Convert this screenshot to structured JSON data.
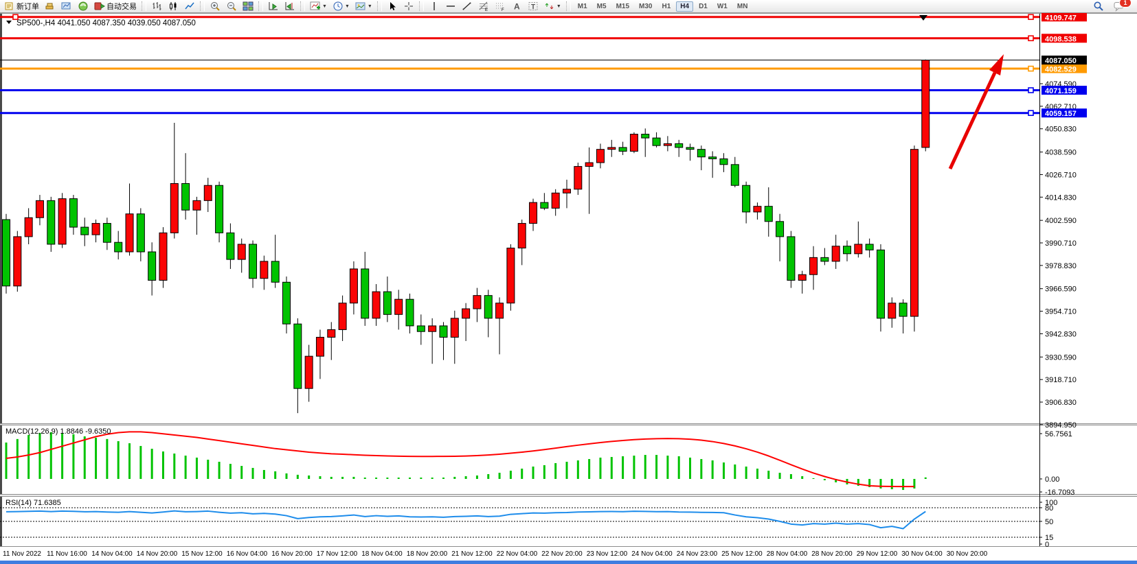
{
  "toolbar": {
    "new_order_label": "新订单",
    "autotrade_label": "自动交易",
    "buttons": [
      {
        "name": "new-order-button",
        "icon": "order",
        "label_key": "new_order_label"
      },
      {
        "name": "market-depth-button",
        "icon": "gold-stack"
      },
      {
        "name": "market-watch-button",
        "icon": "market-watch"
      },
      {
        "name": "signals-button",
        "icon": "signal"
      },
      {
        "name": "autotrading-button",
        "icon": "autotrade",
        "label_key": "autotrade_label"
      },
      {
        "sep": true
      },
      {
        "name": "bar-chart-button",
        "icon": "bar-chart"
      },
      {
        "name": "candlestick-button",
        "icon": "candle-chart"
      },
      {
        "name": "line-chart-button",
        "icon": "line-chart"
      },
      {
        "sep": true
      },
      {
        "name": "zoom-in-button",
        "icon": "zoom-in"
      },
      {
        "name": "zoom-out-button",
        "icon": "zoom-out"
      },
      {
        "name": "tile-windows-button",
        "icon": "tile"
      },
      {
        "sep": true
      },
      {
        "name": "auto-scroll-button",
        "icon": "auto-scroll"
      },
      {
        "name": "chart-shift-button",
        "icon": "chart-shift"
      },
      {
        "sep": true
      },
      {
        "name": "indicators-button",
        "icon": "indicators",
        "caret": true
      },
      {
        "name": "periods-button",
        "icon": "clock",
        "caret": true
      },
      {
        "name": "templates-button",
        "icon": "template",
        "caret": true
      },
      {
        "sep": true
      },
      {
        "name": "cursor-button",
        "icon": "cursor"
      },
      {
        "name": "crosshair-button",
        "icon": "crosshair"
      },
      {
        "sep": true
      },
      {
        "name": "vline-button",
        "icon": "vline"
      },
      {
        "name": "hline-button",
        "icon": "hline"
      },
      {
        "name": "trendline-button",
        "icon": "trendline"
      },
      {
        "name": "fibo-button",
        "icon": "fibo"
      },
      {
        "name": "channel-button",
        "icon": "fibo-f"
      },
      {
        "name": "text-button",
        "icon": "text-a"
      },
      {
        "name": "text-label-button",
        "icon": "text-t"
      },
      {
        "name": "shapes-button",
        "icon": "shapes",
        "caret": true
      },
      {
        "sep": true
      }
    ],
    "timeframes": [
      "M1",
      "M5",
      "M15",
      "M30",
      "H1",
      "H4",
      "D1",
      "W1",
      "MN"
    ],
    "active_timeframe": "H4",
    "chat_badge": "1"
  },
  "chart_data": {
    "type": "candlestick",
    "symbol": "SP500-",
    "timeframe": "H4",
    "title_symbol": "SP500-,H4",
    "title_ohlc": "4041.050 4087.350 4039.050 4087.050",
    "bull_color": "#fa0505",
    "bear_color": "#00c300",
    "wick_color": "#000000",
    "current_price": 4087.05,
    "current_price_badge_bg": "#000000",
    "price_ticks": [
      4074.59,
      4062.71,
      4050.83,
      4038.59,
      4026.71,
      4014.83,
      4002.59,
      3990.71,
      3978.83,
      3966.59,
      3954.71,
      3942.83,
      3930.59,
      3918.71,
      3906.83,
      3894.95
    ],
    "horizontal_lines": [
      {
        "price": 4109.747,
        "color": "#f00000",
        "handles": [
          19,
          1497
        ]
      },
      {
        "price": 4098.538,
        "color": "#f00000",
        "handles": [
          1497
        ]
      },
      {
        "price": 4082.529,
        "color": "#ff9a00",
        "handles": [
          1497
        ]
      },
      {
        "price": 4071.159,
        "color": "#0000ee",
        "handles": [
          1497
        ]
      },
      {
        "price": 4059.157,
        "color": "#0000ee",
        "handles": [
          1497
        ]
      }
    ],
    "candles": [
      [
        4003,
        4006,
        3964,
        3968
      ],
      [
        3968,
        3997,
        3965,
        3994
      ],
      [
        3994,
        4009,
        3990,
        4004
      ],
      [
        4004,
        4016,
        4000,
        4013
      ],
      [
        4013,
        4015,
        3986,
        3990
      ],
      [
        3990,
        4017,
        3988,
        4014
      ],
      [
        4014,
        4016,
        3995,
        3999
      ],
      [
        3999,
        4004,
        3989,
        3995
      ],
      [
        3995,
        4003,
        3991,
        4001
      ],
      [
        4001,
        4004,
        3987,
        3991
      ],
      [
        3991,
        3997,
        3982,
        3986
      ],
      [
        3986,
        4022,
        3984,
        4006
      ],
      [
        4006,
        4009,
        3981,
        3986
      ],
      [
        3986,
        3991,
        3963,
        3971
      ],
      [
        3971,
        3999,
        3967,
        3996
      ],
      [
        3996,
        4054,
        3993,
        4022
      ],
      [
        4022,
        4038,
        4003,
        4008
      ],
      [
        4008,
        4015,
        3995,
        4013
      ],
      [
        4013,
        4025,
        4007,
        4021
      ],
      [
        4021,
        4023,
        3991,
        3996
      ],
      [
        3996,
        4001,
        3977,
        3982
      ],
      [
        3982,
        3993,
        3975,
        3990
      ],
      [
        3990,
        3992,
        3967,
        3972
      ],
      [
        3972,
        3984,
        3966,
        3981
      ],
      [
        3981,
        3995,
        3967,
        3970
      ],
      [
        3970,
        3973,
        3943,
        3948
      ],
      [
        3948,
        3951,
        3901,
        3914
      ],
      [
        3914,
        3937,
        3907,
        3931
      ],
      [
        3931,
        3945,
        3919,
        3941
      ],
      [
        3941,
        3949,
        3929,
        3945
      ],
      [
        3945,
        3963,
        3939,
        3959
      ],
      [
        3959,
        3981,
        3953,
        3977
      ],
      [
        3977,
        3986,
        3947,
        3951
      ],
      [
        3951,
        3969,
        3947,
        3965
      ],
      [
        3965,
        3973,
        3949,
        3953
      ],
      [
        3953,
        3966,
        3945,
        3961
      ],
      [
        3961,
        3964,
        3943,
        3947
      ],
      [
        3947,
        3953,
        3937,
        3944
      ],
      [
        3944,
        3951,
        3927,
        3947
      ],
      [
        3947,
        3949,
        3929,
        3941
      ],
      [
        3941,
        3955,
        3927,
        3951
      ],
      [
        3951,
        3959,
        3939,
        3956
      ],
      [
        3956,
        3967,
        3949,
        3963
      ],
      [
        3963,
        3966,
        3941,
        3951
      ],
      [
        3951,
        3962,
        3932,
        3959
      ],
      [
        3959,
        3990,
        3955,
        3988
      ],
      [
        3988,
        4003,
        3979,
        4001
      ],
      [
        4001,
        4014,
        3997,
        4012
      ],
      [
        4012,
        4017,
        4008,
        4009
      ],
      [
        4009,
        4019,
        4005,
        4017
      ],
      [
        4017,
        4024,
        4009,
        4019
      ],
      [
        4019,
        4033,
        4016,
        4031
      ],
      [
        4031,
        4041,
        4006,
        4033
      ],
      [
        4033,
        4043,
        4030,
        4040
      ],
      [
        4040,
        4045,
        4036,
        4041
      ],
      [
        4041,
        4044,
        4037,
        4039
      ],
      [
        4039,
        4049,
        4038,
        4048
      ],
      [
        4048,
        4051,
        4036,
        4046
      ],
      [
        4046,
        4049,
        4041,
        4042
      ],
      [
        4042,
        4047,
        4039,
        4043
      ],
      [
        4043,
        4045,
        4036,
        4041
      ],
      [
        4041,
        4043,
        4034,
        4040
      ],
      [
        4040,
        4042,
        4029,
        4036
      ],
      [
        4036,
        4039,
        4025,
        4035
      ],
      [
        4035,
        4038,
        4028,
        4032
      ],
      [
        4032,
        4036,
        4020,
        4021
      ],
      [
        4021,
        4023,
        4001,
        4007
      ],
      [
        4007,
        4012,
        4003,
        4010
      ],
      [
        4010,
        4020,
        3994,
        4002
      ],
      [
        4002,
        4006,
        3981,
        3994
      ],
      [
        3994,
        3997,
        3967,
        3971
      ],
      [
        3971,
        3976,
        3964,
        3974
      ],
      [
        3974,
        3989,
        3966,
        3983
      ],
      [
        3983,
        3988,
        3979,
        3981
      ],
      [
        3981,
        3995,
        3977,
        3989
      ],
      [
        3989,
        3992,
        3981,
        3985
      ],
      [
        3985,
        4002,
        3983,
        3990
      ],
      [
        3990,
        3993,
        3983,
        3987
      ],
      [
        3987,
        3990,
        3944,
        3951
      ],
      [
        3951,
        3962,
        3946,
        3959
      ],
      [
        3959,
        3961,
        3943,
        3952
      ],
      [
        3952,
        4042,
        3944,
        4040
      ],
      [
        4041,
        4087.35,
        4039,
        4087.05
      ]
    ],
    "macd": {
      "label": "MACD(12,26,9) 1.8846 -9.6350",
      "hist_color": "#00c300",
      "signal_color": "#ff0000",
      "scale_labels": [
        {
          "v": 56.7561,
          "text": "56.7561"
        },
        {
          "v": 0,
          "text": "0.00"
        },
        {
          "v": -16.7093,
          "text": "-16.7093"
        }
      ],
      "hist": [
        45.6,
        50,
        55,
        57.6,
        58.5,
        57.6,
        55.9,
        53.3,
        51.6,
        50,
        47.3,
        44.7,
        41.3,
        37.8,
        34.4,
        31.8,
        29.2,
        26.7,
        24.1,
        21.5,
        18.9,
        16.3,
        13.8,
        11.2,
        9.5,
        6.9,
        5.2,
        4.3,
        3.4,
        2.6,
        2.6,
        2.6,
        1.7,
        1.7,
        1.7,
        1.7,
        1.7,
        1.7,
        1.7,
        1.7,
        2.6,
        3.4,
        4.3,
        6.0,
        7.7,
        10.3,
        12.9,
        15.5,
        17.2,
        19.8,
        21.5,
        23.2,
        24.9,
        26.7,
        27.5,
        28.4,
        29.2,
        30.1,
        30.1,
        29.2,
        28.4,
        26.7,
        24.9,
        23.2,
        20.6,
        18.1,
        15.5,
        12.9,
        10.3,
        7.7,
        6.0,
        3.4,
        0.9,
        -1.7,
        -4.3,
        -6.9,
        -8.6,
        -10.3,
        -12.0,
        -12.9,
        -13.8,
        -12.0,
        1.9
      ],
      "signal": [
        25.8,
        27.5,
        30,
        33,
        37,
        41,
        45,
        49,
        53,
        56,
        58,
        59,
        59,
        58,
        56.5,
        55,
        53.5,
        52,
        50,
        48,
        46,
        44,
        42,
        40,
        38,
        36.5,
        35,
        33.5,
        32.5,
        31.5,
        31,
        30.3,
        29.7,
        29.2,
        28.8,
        28.5,
        28.3,
        28.2,
        28.2,
        28.3,
        28.4,
        28.7,
        29.2,
        30,
        31,
        32.2,
        33.5,
        35,
        36.8,
        38.6,
        40.5,
        42.3,
        44,
        45.6,
        47,
        48.2,
        49.2,
        50,
        50.4,
        50.6,
        50.4,
        49.8,
        48.6,
        46.8,
        44.4,
        41.4,
        37.8,
        33.6,
        28.8,
        23.4,
        17.8,
        12.4,
        7.4,
        3.0,
        -0.8,
        -4.0,
        -6.6,
        -8.6,
        -9.2,
        -9.5,
        -9.6,
        -9.6,
        null
      ]
    },
    "rsi": {
      "label": "RSI(14) 71.6385",
      "line_color": "#1d8ceb",
      "scale_labels": [
        {
          "v": 100,
          "text": "100",
          "dashed": false
        },
        {
          "v": 80,
          "text": "80",
          "dashed": true
        },
        {
          "v": 50,
          "text": "50",
          "dashed": true
        },
        {
          "v": 15,
          "text": "15",
          "dashed": true
        },
        {
          "v": 0,
          "text": "0",
          "dashed": false
        }
      ],
      "values": [
        71,
        71.5,
        72,
        72.5,
        71.5,
        72.5,
        72,
        71,
        71.5,
        70.5,
        70,
        71.5,
        70,
        68.5,
        70.5,
        73,
        71,
        71.5,
        72.5,
        70,
        68,
        69,
        66.5,
        67.5,
        66,
        62.5,
        56,
        58.5,
        60,
        60.5,
        62,
        64,
        60.5,
        62.5,
        61,
        62,
        60,
        59.5,
        60,
        59,
        60.5,
        61,
        62,
        60.5,
        61.5,
        65.5,
        67,
        68.5,
        68,
        69,
        69.3,
        70.5,
        70.8,
        71.5,
        71.6,
        71.2,
        72.2,
        71.8,
        71.3,
        71.4,
        70.6,
        70.4,
        69.8,
        69.6,
        69,
        64,
        60,
        58,
        55,
        50,
        44,
        42,
        45,
        44,
        46,
        44,
        45,
        43,
        36,
        39,
        34,
        55,
        71.64
      ]
    },
    "dates": [
      "11 Nov 2022",
      "11 Nov 16:00",
      "14 Nov 04:00",
      "14 Nov 20:00",
      "15 Nov 12:00",
      "16 Nov 04:00",
      "16 Nov 20:00",
      "17 Nov 12:00",
      "18 Nov 04:00",
      "18 Nov 20:00",
      "21 Nov 12:00",
      "22 Nov 04:00",
      "22 Nov 20:00",
      "23 Nov 12:00",
      "24 Nov 04:00",
      "24 Nov 23:00",
      "25 Nov 12:00",
      "28 Nov 04:00",
      "28 Nov 20:00",
      "29 Nov 12:00",
      "30 Nov 04:00",
      "30 Nov 20:00"
    ],
    "arrow_color": "#e80000"
  }
}
